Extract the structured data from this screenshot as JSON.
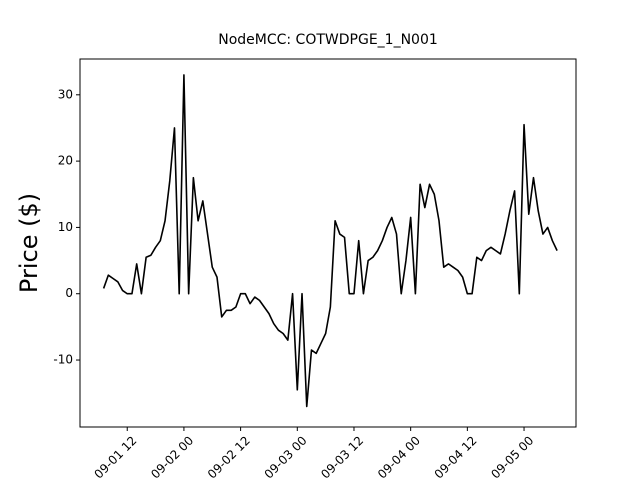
{
  "chart_data": {
    "type": "line",
    "title": "NodeMCC: COTWDPGE_1_N001",
    "y_label": "Price ($)",
    "x": [
      "09-01 07",
      "09-01 08",
      "09-01 09",
      "09-01 10",
      "09-01 11",
      "09-01 12",
      "09-01 13",
      "09-01 14",
      "09-01 15",
      "09-01 16",
      "09-01 17",
      "09-01 18",
      "09-01 19",
      "09-01 20",
      "09-01 21",
      "09-01 22",
      "09-01 23",
      "09-02 00",
      "09-02 01",
      "09-02 02",
      "09-02 03",
      "09-02 04",
      "09-02 05",
      "09-02 06",
      "09-02 07",
      "09-02 08",
      "09-02 09",
      "09-02 10",
      "09-02 11",
      "09-02 12",
      "09-02 13",
      "09-02 14",
      "09-02 15",
      "09-02 16",
      "09-02 17",
      "09-02 18",
      "09-02 19",
      "09-02 20",
      "09-02 21",
      "09-02 22",
      "09-02 23",
      "09-03 00",
      "09-03 01",
      "09-03 02",
      "09-03 03",
      "09-03 04",
      "09-03 05",
      "09-03 06",
      "09-03 07",
      "09-03 08",
      "09-03 09",
      "09-03 10",
      "09-03 11",
      "09-03 12",
      "09-03 13",
      "09-03 14",
      "09-03 15",
      "09-03 16",
      "09-03 17",
      "09-03 18",
      "09-03 19",
      "09-03 20",
      "09-03 21",
      "09-03 22",
      "09-03 23",
      "09-04 00",
      "09-04 01",
      "09-04 02",
      "09-04 03",
      "09-04 04",
      "09-04 05",
      "09-04 06",
      "09-04 07",
      "09-04 08",
      "09-04 09",
      "09-04 10",
      "09-04 11",
      "09-04 12",
      "09-04 13",
      "09-04 14",
      "09-04 15",
      "09-04 16",
      "09-04 17",
      "09-04 18",
      "09-04 19",
      "09-04 20",
      "09-04 21",
      "09-04 22",
      "09-04 23",
      "09-05 00",
      "09-05 01",
      "09-05 02",
      "09-05 03",
      "09-05 04",
      "09-05 05",
      "09-05 06",
      "09-05 07"
    ],
    "series": [
      {
        "color": "#000000",
        "values": [
          0.8,
          2.8,
          2.3,
          1.8,
          0.5,
          0,
          0,
          4.5,
          0,
          5.5,
          5.8,
          7,
          8,
          11,
          17,
          25,
          0,
          33,
          0,
          17.5,
          11,
          14,
          9,
          4,
          2.5,
          -3.5,
          -2.5,
          -2.5,
          -2,
          0,
          0,
          -1.5,
          -0.5,
          -1,
          -2,
          -3,
          -4.5,
          -5.5,
          -6,
          -7,
          0,
          -14.5,
          0,
          -17,
          -8.5,
          -9,
          -7.5,
          -6,
          -2,
          11,
          9,
          8.5,
          0,
          0,
          8,
          0,
          5,
          5.5,
          6.5,
          8,
          10,
          11.5,
          9,
          0,
          5,
          11.5,
          0,
          16.5,
          13,
          16.5,
          15,
          11,
          4,
          4.5,
          4,
          3.5,
          2.5,
          0,
          0,
          5.5,
          5,
          6.5,
          7,
          6.5,
          6,
          9,
          12.5,
          15.5,
          0,
          25.5,
          12,
          17.5,
          12.5,
          9,
          10,
          8,
          6.5
        ]
      }
    ],
    "xlim": [
      "09-01 02",
      "09-05 11"
    ],
    "xticks": [
      "09-01 12",
      "09-02 00",
      "09-02 12",
      "09-03 00",
      "09-03 12",
      "09-04 00",
      "09-04 12",
      "09-05 00"
    ],
    "ylim": [
      -20.1,
      35.4
    ],
    "yticks": [
      -10,
      0,
      10,
      20,
      30
    ]
  }
}
